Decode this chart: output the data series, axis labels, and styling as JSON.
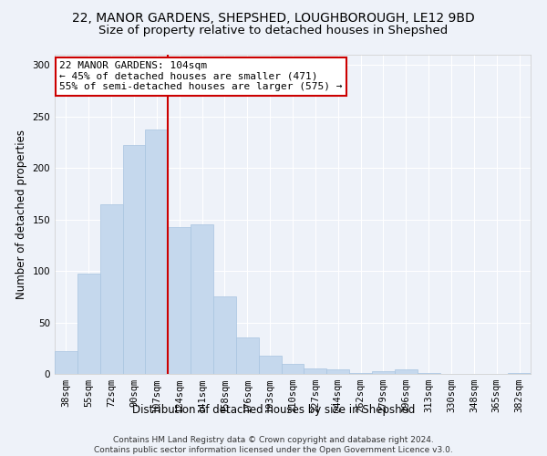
{
  "title_line1": "22, MANOR GARDENS, SHEPSHED, LOUGHBOROUGH, LE12 9BD",
  "title_line2": "Size of property relative to detached houses in Shepshed",
  "xlabel": "Distribution of detached houses by size in Shepshed",
  "ylabel": "Number of detached properties",
  "bar_labels": [
    "38sqm",
    "55sqm",
    "72sqm",
    "90sqm",
    "107sqm",
    "124sqm",
    "141sqm",
    "158sqm",
    "176sqm",
    "193sqm",
    "210sqm",
    "227sqm",
    "244sqm",
    "262sqm",
    "279sqm",
    "296sqm",
    "313sqm",
    "330sqm",
    "348sqm",
    "365sqm",
    "382sqm"
  ],
  "bar_values": [
    22,
    97,
    165,
    222,
    237,
    143,
    145,
    75,
    35,
    18,
    10,
    5,
    4,
    1,
    3,
    4,
    1,
    0,
    0,
    0,
    1
  ],
  "bar_color": "#c5d8ed",
  "bar_edgecolor": "#a8c4e0",
  "vline_x": 4.5,
  "vline_color": "#cc0000",
  "annotation_text": "22 MANOR GARDENS: 104sqm\n← 45% of detached houses are smaller (471)\n55% of semi-detached houses are larger (575) →",
  "annotation_box_color": "white",
  "annotation_box_edgecolor": "#cc0000",
  "background_color": "#eef2f9",
  "ylim": [
    0,
    310
  ],
  "yticks": [
    0,
    50,
    100,
    150,
    200,
    250,
    300
  ],
  "footer": "Contains HM Land Registry data © Crown copyright and database right 2024.\nContains public sector information licensed under the Open Government Licence v3.0.",
  "title1_fontsize": 10,
  "title2_fontsize": 9.5,
  "axis_label_fontsize": 8.5,
  "tick_fontsize": 7.5,
  "annotation_fontsize": 8,
  "footer_fontsize": 6.5
}
